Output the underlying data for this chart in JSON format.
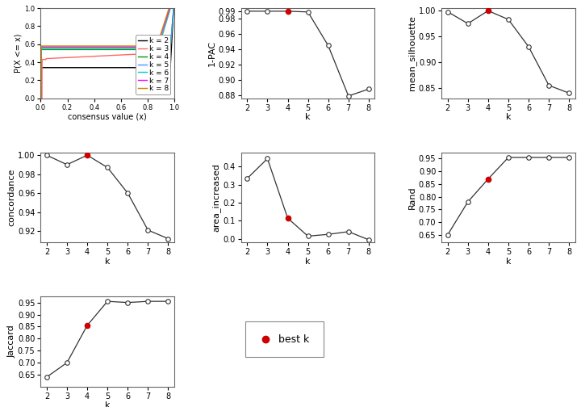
{
  "k_values": [
    2,
    3,
    4,
    5,
    6,
    7,
    8
  ],
  "best_k_pac": 4,
  "best_k_sil": 4,
  "best_k_conc": 4,
  "best_k_area": 4,
  "best_k_rand": 4,
  "best_k_jacc": 4,
  "one_pac": [
    0.99,
    0.99,
    0.99,
    0.989,
    0.945,
    0.879,
    0.888
  ],
  "mean_silhouette": [
    0.998,
    0.975,
    1.0,
    0.983,
    0.93,
    0.855,
    0.84
  ],
  "concordance": [
    1.0,
    0.99,
    1.0,
    0.987,
    0.96,
    0.921,
    0.912
  ],
  "area_increased": [
    0.335,
    0.445,
    0.115,
    0.015,
    0.025,
    0.04,
    -0.005
  ],
  "rand": [
    0.65,
    0.78,
    0.87,
    0.955,
    0.955,
    0.955,
    0.955
  ],
  "jaccard": [
    0.64,
    0.7,
    0.855,
    0.955,
    0.95,
    0.955,
    0.955
  ],
  "ecdf_colors": [
    "#000000",
    "#FF6666",
    "#009900",
    "#4499FF",
    "#00CCCC",
    "#FF00FF",
    "#CC8800"
  ],
  "ecdf_labels": [
    "k = 2",
    "k = 3",
    "k = 4",
    "k = 5",
    "k = 6",
    "k = 7",
    "k = 8"
  ],
  "bg_color": "#FFFFFF",
  "best_marker_color": "#CC0000",
  "axis_label_fontsize": 8,
  "tick_fontsize": 7,
  "legend_fontsize": 7
}
